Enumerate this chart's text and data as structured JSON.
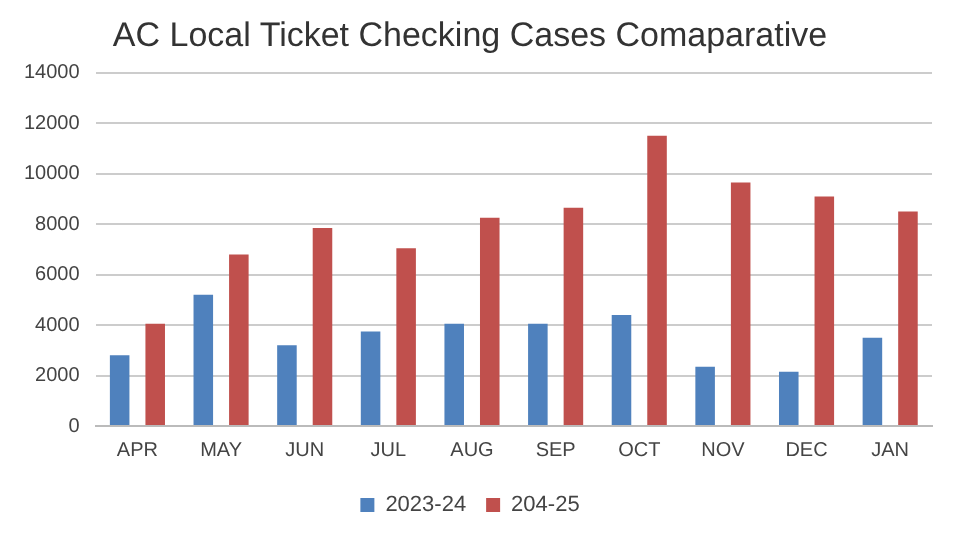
{
  "chart_data": {
    "type": "bar",
    "title": "AC Local Ticket Checking Cases Comaparative",
    "categories": [
      "APR",
      "MAY",
      "JUN",
      "JUL",
      "AUG",
      "SEP",
      "OCT",
      "NOV",
      "DEC",
      "JAN"
    ],
    "series": [
      {
        "name": "2023-24",
        "color": "#4f81bd",
        "values": [
          2800,
          5200,
          3200,
          3750,
          4050,
          4050,
          4400,
          2350,
          2150,
          3500
        ]
      },
      {
        "name": "204-25",
        "color": "#c0504d",
        "values": [
          4050,
          6800,
          7850,
          7050,
          8250,
          8650,
          11500,
          9650,
          9100,
          8500
        ]
      }
    ],
    "ylim": [
      0,
      14000
    ],
    "yticks": [
      0,
      2000,
      4000,
      6000,
      8000,
      10000,
      12000,
      14000
    ],
    "grid": "y",
    "legend": "bottom"
  }
}
